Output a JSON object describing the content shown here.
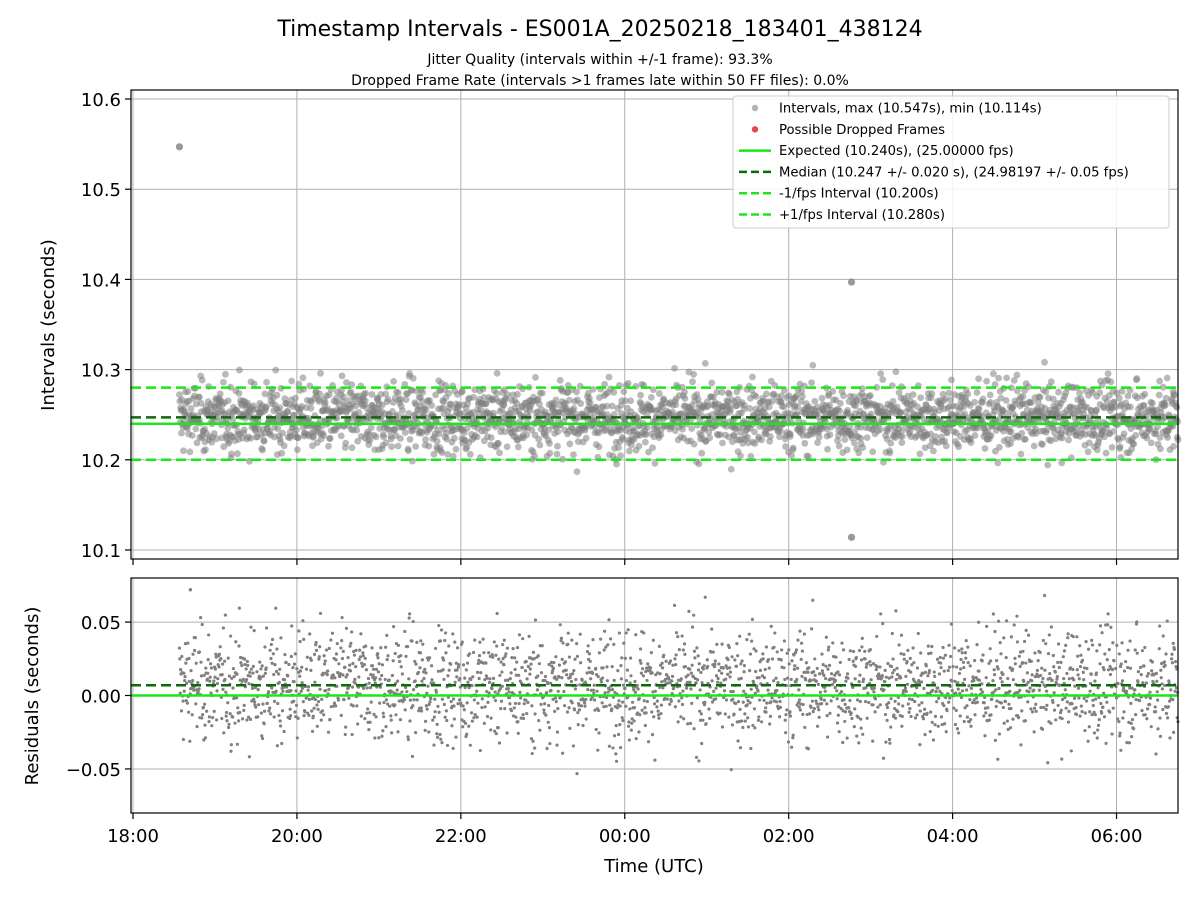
{
  "title": "Timestamp Intervals - ES001A_20250218_183401_438124",
  "subtitle_1": "Jitter Quality (intervals within +/-1 frame): 93.3%",
  "subtitle_2": "Dropped Frame Rate (intervals >1 frames late within 50 FF files): 0.0%",
  "colors": {
    "points": "#808080",
    "dropped": "#e8484c",
    "expected": "#18e818",
    "median": "#0a6b0a",
    "bounds": "#18e818",
    "grid": "#b0b0b0"
  },
  "chart_data": [
    {
      "type": "scatter",
      "panel": "top",
      "xlabel": "",
      "ylabel": "Intervals (seconds)",
      "x_range_hours_utc": [
        "18:00",
        "06:45"
      ],
      "ylim": [
        10.09,
        10.61
      ],
      "y_ticks": [
        "10.1",
        "10.2",
        "10.3",
        "10.4",
        "10.5",
        "10.6"
      ],
      "grid": true,
      "legend_position": "top-right",
      "legend": [
        {
          "label": "Intervals, max (10.547s), min (10.114s)",
          "kind": "point-grey"
        },
        {
          "label": "Possible Dropped Frames",
          "kind": "point-red"
        },
        {
          "label": "Expected (10.240s), (25.00000 fps)",
          "kind": "line-solid-green"
        },
        {
          "label": "Median (10.247 +/- 0.020 s), (24.98197 +/- 0.05 fps)",
          "kind": "line-dashed-darkgreen"
        },
        {
          "label": "-1/fps Interval (10.200s)",
          "kind": "line-dashed-green"
        },
        {
          "label": "+1/fps Interval (10.280s)",
          "kind": "line-dashed-green"
        }
      ],
      "expected": 10.24,
      "median": 10.247,
      "lower_bound": 10.2,
      "upper_bound": 10.28,
      "max": 10.547,
      "min": 10.114,
      "data_start": "18:34",
      "data_end": "06:45",
      "bulk_mean": 10.247,
      "bulk_sd": 0.02,
      "approx_point_count": 2500,
      "outliers": [
        {
          "time": "18:34",
          "value": 10.547
        },
        {
          "time": "02:46",
          "value": 10.397
        },
        {
          "time": "02:46",
          "value": 10.114
        }
      ]
    },
    {
      "type": "scatter",
      "panel": "bottom",
      "xlabel": "Time (UTC)",
      "ylabel": "Residuals (seconds)",
      "x_range_hours_utc": [
        "18:00",
        "06:45"
      ],
      "x_ticks": [
        "18:00",
        "20:00",
        "22:00",
        "00:00",
        "02:00",
        "04:00",
        "06:00"
      ],
      "ylim": [
        -0.08,
        0.08
      ],
      "y_ticks": [
        "−0.05",
        "0.00",
        "0.05"
      ],
      "grid": true,
      "expected": 0.0,
      "median": 0.007,
      "bulk_sd": 0.02,
      "max": 0.072
    }
  ]
}
